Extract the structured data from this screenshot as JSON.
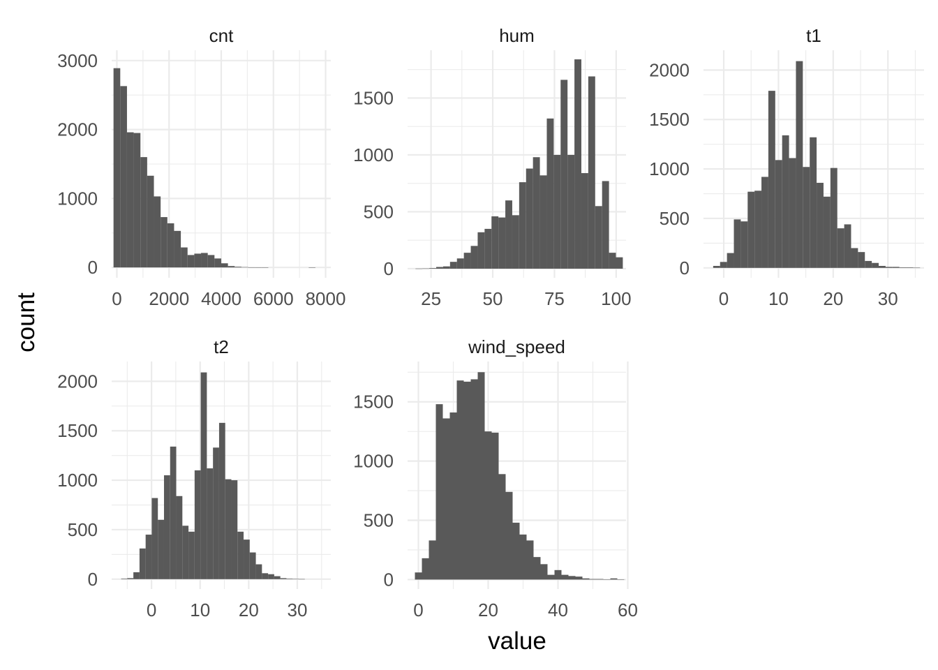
{
  "chart_data": {
    "type": "bar",
    "subtype": "faceted-histogram",
    "xlabel": "value",
    "ylabel": "count",
    "facets": [
      {
        "name": "cnt",
        "xlim": [
          -200,
          8200
        ],
        "ylim": [
          -150,
          3150
        ],
        "xticks": [
          0,
          2000,
          4000,
          6000,
          8000
        ],
        "yticks": [
          0,
          1000,
          2000,
          3000
        ],
        "bins": {
          "start": -129,
          "width": 258
        },
        "counts": [
          2890,
          2630,
          1960,
          1950,
          1600,
          1330,
          1030,
          730,
          640,
          530,
          290,
          180,
          200,
          210,
          180,
          130,
          60,
          20,
          10,
          5,
          2,
          1,
          1,
          0,
          0,
          0,
          0,
          0,
          0,
          1
        ]
      },
      {
        "name": "hum",
        "xlim": [
          15.5,
          104
        ],
        "ylim": [
          -80,
          1920
        ],
        "xticks": [
          25,
          50,
          75,
          100
        ],
        "yticks": [
          0,
          500,
          1000,
          1500
        ],
        "bins": {
          "start": 18.7,
          "width": 2.8
        },
        "counts": [
          1,
          2,
          5,
          15,
          20,
          60,
          90,
          140,
          200,
          320,
          350,
          460,
          450,
          600,
          470,
          760,
          880,
          980,
          820,
          1320,
          1000,
          1660,
          1000,
          1840,
          840,
          1690,
          550,
          770,
          140,
          100
        ]
      },
      {
        "name": "t1",
        "xlim": [
          -3.7,
          36.6
        ],
        "ylim": [
          -100,
          2200
        ],
        "xticks": [
          0,
          10,
          20,
          30
        ],
        "yticks": [
          0,
          500,
          1000,
          1500,
          2000
        ],
        "bins": {
          "start": -1.93,
          "width": 1.26
        },
        "counts": [
          20,
          60,
          150,
          490,
          470,
          770,
          780,
          920,
          1790,
          1090,
          1340,
          1110,
          2090,
          1020,
          1320,
          860,
          720,
          1010,
          400,
          440,
          200,
          160,
          70,
          50,
          20,
          10,
          10,
          5,
          5,
          2
        ]
      },
      {
        "name": "t2",
        "xlim": [
          -8.2,
          36.9
        ],
        "ylim": [
          -100,
          2200
        ],
        "xticks": [
          0,
          10,
          20,
          30
        ],
        "yticks": [
          0,
          500,
          1000,
          1500,
          2000
        ],
        "bins": {
          "start": -6.25,
          "width": 1.26
        },
        "counts": [
          5,
          10,
          70,
          310,
          450,
          820,
          600,
          1050,
          1340,
          840,
          540,
          480,
          1100,
          2090,
          1120,
          1330,
          1580,
          1010,
          1000,
          480,
          400,
          270,
          150,
          60,
          50,
          30,
          10,
          5,
          2,
          1
        ]
      },
      {
        "name": "wind_speed",
        "xlim": [
          -3.1,
          59.5
        ],
        "ylim": [
          -80,
          1840
        ],
        "xticks": [
          0,
          20,
          40,
          60
        ],
        "yticks": [
          0,
          500,
          1000,
          1500
        ],
        "bins": {
          "start": -1.0,
          "width": 2.0
        },
        "counts": [
          60,
          180,
          330,
          1480,
          1360,
          1410,
          1680,
          1670,
          1690,
          1750,
          1250,
          1240,
          890,
          740,
          480,
          380,
          330,
          190,
          130,
          40,
          80,
          40,
          30,
          25,
          10,
          5,
          5,
          2,
          10,
          1
        ]
      }
    ]
  }
}
